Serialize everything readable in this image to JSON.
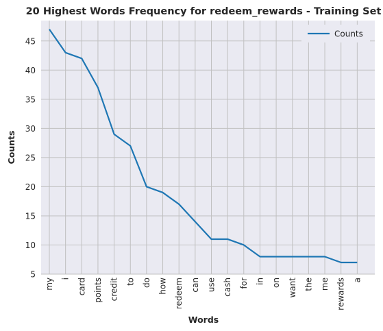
{
  "chart_data": {
    "type": "line",
    "title": "20 Highest Words Frequency for redeem_rewards - Training Set",
    "xlabel": "Words",
    "ylabel": "Counts",
    "categories": [
      "my",
      "i",
      "card",
      "points",
      "credit",
      "to",
      "do",
      "how",
      "redeem",
      "can",
      "use",
      "cash",
      "for",
      "in",
      "on",
      "want",
      "the",
      "me",
      "rewards",
      "a"
    ],
    "series": [
      {
        "name": "Counts",
        "values": [
          47,
          43,
          42,
          37,
          29,
          27,
          20,
          19,
          17,
          14,
          11,
          11,
          10,
          8,
          8,
          8,
          8,
          8,
          7,
          7
        ],
        "color": "#1f77b4"
      }
    ],
    "ylim": [
      5,
      48.5
    ],
    "yticks": [
      5,
      10,
      15,
      20,
      25,
      30,
      35,
      40,
      45
    ],
    "grid": true,
    "legend": "top-right",
    "background": "#eaeaf2",
    "grid_color": "#c0c0c0"
  }
}
